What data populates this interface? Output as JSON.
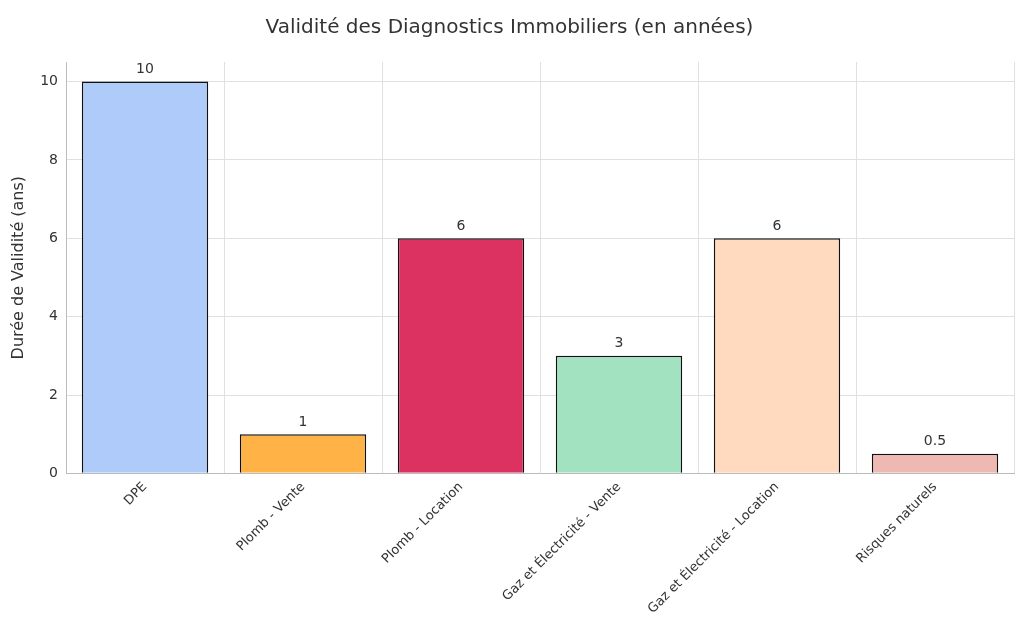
{
  "chart_data": {
    "type": "bar",
    "title": "Validité des Diagnostics Immobiliers (en années)",
    "y_label": "Durée de Validité (ans)",
    "categories": [
      "DPE",
      "Plomb - Vente",
      "Plomb - Location",
      "Gaz et Électricité - Vente",
      "Gaz et Électricité - Location",
      "Risques naturels"
    ],
    "values": [
      10,
      1,
      6,
      3,
      6,
      0.5
    ],
    "colors": [
      "#aecbfa",
      "#ffb347",
      "#dc3261",
      "#a2e2c0",
      "#ffdabe",
      "#f0b8b2"
    ],
    "ylim": [
      0,
      10.5
    ],
    "yticks": [
      0,
      2,
      4,
      6,
      8,
      10
    ],
    "grid": true,
    "data_labels": true
  }
}
